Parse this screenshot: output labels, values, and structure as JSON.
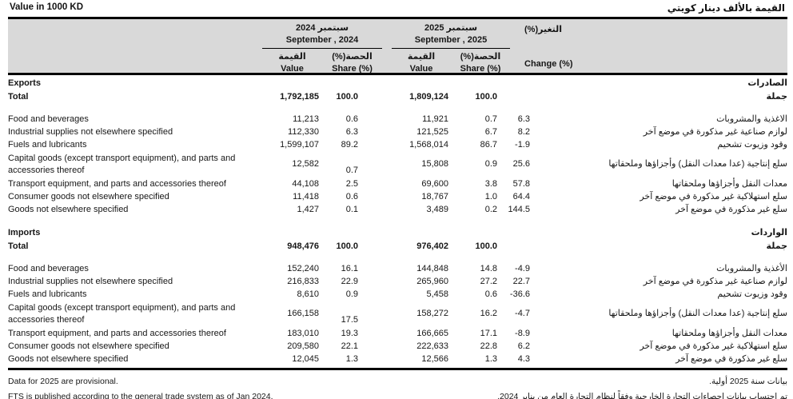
{
  "page": {
    "title_en": "Value in 1000 KD",
    "title_ar": "القيمة بالألف دينار كويتي"
  },
  "header": {
    "groups": [
      {
        "ar": "سبتمبر 2024",
        "en": "September , 2024"
      },
      {
        "ar": "سبتمبر 2025",
        "en": "September , 2025"
      }
    ],
    "subcols": {
      "value_ar": "القيمة",
      "value_en": "Value",
      "share_ar": "الحصة(%)",
      "share_en": "Share (%)"
    },
    "change_ar": "التغير(%)",
    "change_en": "Change (%)"
  },
  "sections": [
    {
      "name_en": "Exports",
      "name_ar": "الصادرات",
      "total": {
        "en": "Total",
        "ar": "جملة",
        "v24": "1,792,185",
        "s24": "100.0",
        "v25": "1,809,124",
        "s25": "100.0",
        "chg": ""
      },
      "rows": [
        {
          "en": "Food and beverages",
          "ar": "الاغذية والمشروبات",
          "v24": "11,213",
          "s24": "0.6",
          "v25": "11,921",
          "s25": "0.7",
          "chg": "6.3",
          "tall": false
        },
        {
          "en": "Industrial supplies not elsewhere specified",
          "ar": "لوازم صناعية غير مذكورة في موضع آخر",
          "v24": "112,330",
          "s24": "6.3",
          "v25": "121,525",
          "s25": "6.7",
          "chg": "8.2",
          "tall": false
        },
        {
          "en": "Fuels and lubricants",
          "ar": "وقود وزيوت تشحيم",
          "v24": "1,599,107",
          "s24": "89.2",
          "v25": "1,568,014",
          "s25": "86.7",
          "chg": "-1.9",
          "tall": false
        },
        {
          "en": "Capital goods (except transport equipment), and parts and accessories thereof",
          "ar": "سلع إنتاجية (عدا معدات النقل) وأجزاؤها وملحقاتها",
          "v24": "12,582",
          "s24": "0.7",
          "v25": "15,808",
          "s25": "0.9",
          "chg": "25.6",
          "tall": true
        },
        {
          "en": "Transport equipment, and parts and accessories thereof",
          "ar": "معدات النقل وأجزاؤها وملحقاتها",
          "v24": "44,108",
          "s24": "2.5",
          "v25": "69,600",
          "s25": "3.8",
          "chg": "57.8",
          "tall": false
        },
        {
          "en": "Consumer goods not elsewhere specified",
          "ar": "سلع استهلاكية غير مذكورة في موضع آخر",
          "v24": "11,418",
          "s24": "0.6",
          "v25": "18,767",
          "s25": "1.0",
          "chg": "64.4",
          "tall": false
        },
        {
          "en": "Goods not elsewhere specified",
          "ar": "سلع غير مذكورة في موضع آخر",
          "v24": "1,427",
          "s24": "0.1",
          "v25": "3,489",
          "s25": "0.2",
          "chg": "144.5",
          "tall": false
        }
      ]
    },
    {
      "name_en": "Imports",
      "name_ar": "الواردات",
      "total": {
        "en": "Total",
        "ar": "جملة",
        "v24": "948,476",
        "s24": "100.0",
        "v25": "976,402",
        "s25": "100.0",
        "chg": ""
      },
      "rows": [
        {
          "en": "Food and beverages",
          "ar": "الأغذية والمشروبات",
          "v24": "152,240",
          "s24": "16.1",
          "v25": "144,848",
          "s25": "14.8",
          "chg": "-4.9",
          "tall": false
        },
        {
          "en": "Industrial supplies not elsewhere specified",
          "ar": "لوازم صناعية غير مذكورة في موضع آخر",
          "v24": "216,833",
          "s24": "22.9",
          "v25": "265,960",
          "s25": "27.2",
          "chg": "22.7",
          "tall": false
        },
        {
          "en": "Fuels and lubricants",
          "ar": "وقود وزيوت تشحيم",
          "v24": "8,610",
          "s24": "0.9",
          "v25": "5,458",
          "s25": "0.6",
          "chg": "-36.6",
          "tall": false
        },
        {
          "en": "Capital goods (except transport equipment), and parts and accessories thereof",
          "ar": "سلع إنتاجية (عدا معدات النقل) وأجزاؤها وملحقاتها",
          "v24": "166,158",
          "s24": "17.5",
          "v25": "158,272",
          "s25": "16.2",
          "chg": "-4.7",
          "tall": true
        },
        {
          "en": "Transport equipment, and parts and accessories thereof",
          "ar": "معدات النقل وأجزاؤها وملحقاتها",
          "v24": "183,010",
          "s24": "19.3",
          "v25": "166,665",
          "s25": "17.1",
          "chg": "-8.9",
          "tall": false
        },
        {
          "en": "Consumer goods not elsewhere specified",
          "ar": "سلع استهلاكية غير مذكورة في موضع آخر",
          "v24": "209,580",
          "s24": "22.1",
          "v25": "222,633",
          "s25": "22.8",
          "chg": "6.2",
          "tall": false
        },
        {
          "en": "Goods not elsewhere specified",
          "ar": "سلع غير مذكورة في موضع آخر",
          "v24": "12,045",
          "s24": "1.3",
          "v25": "12,566",
          "s25": "1.3",
          "chg": "4.3",
          "tall": false
        }
      ]
    }
  ],
  "footnotes": {
    "en": [
      "Data for 2025 are provisional.",
      "FTS is published according to the general trade system as of Jan 2024."
    ],
    "ar": [
      "بيانات سنة 2025 أولية.",
      "تم احتساب بيانات إحصاءات التجارة الخارجية وفقاً لنظام التجارة العام من يناير 2024."
    ]
  },
  "colors": {
    "header_bg": "#d9d9d9",
    "border": "#000000"
  }
}
